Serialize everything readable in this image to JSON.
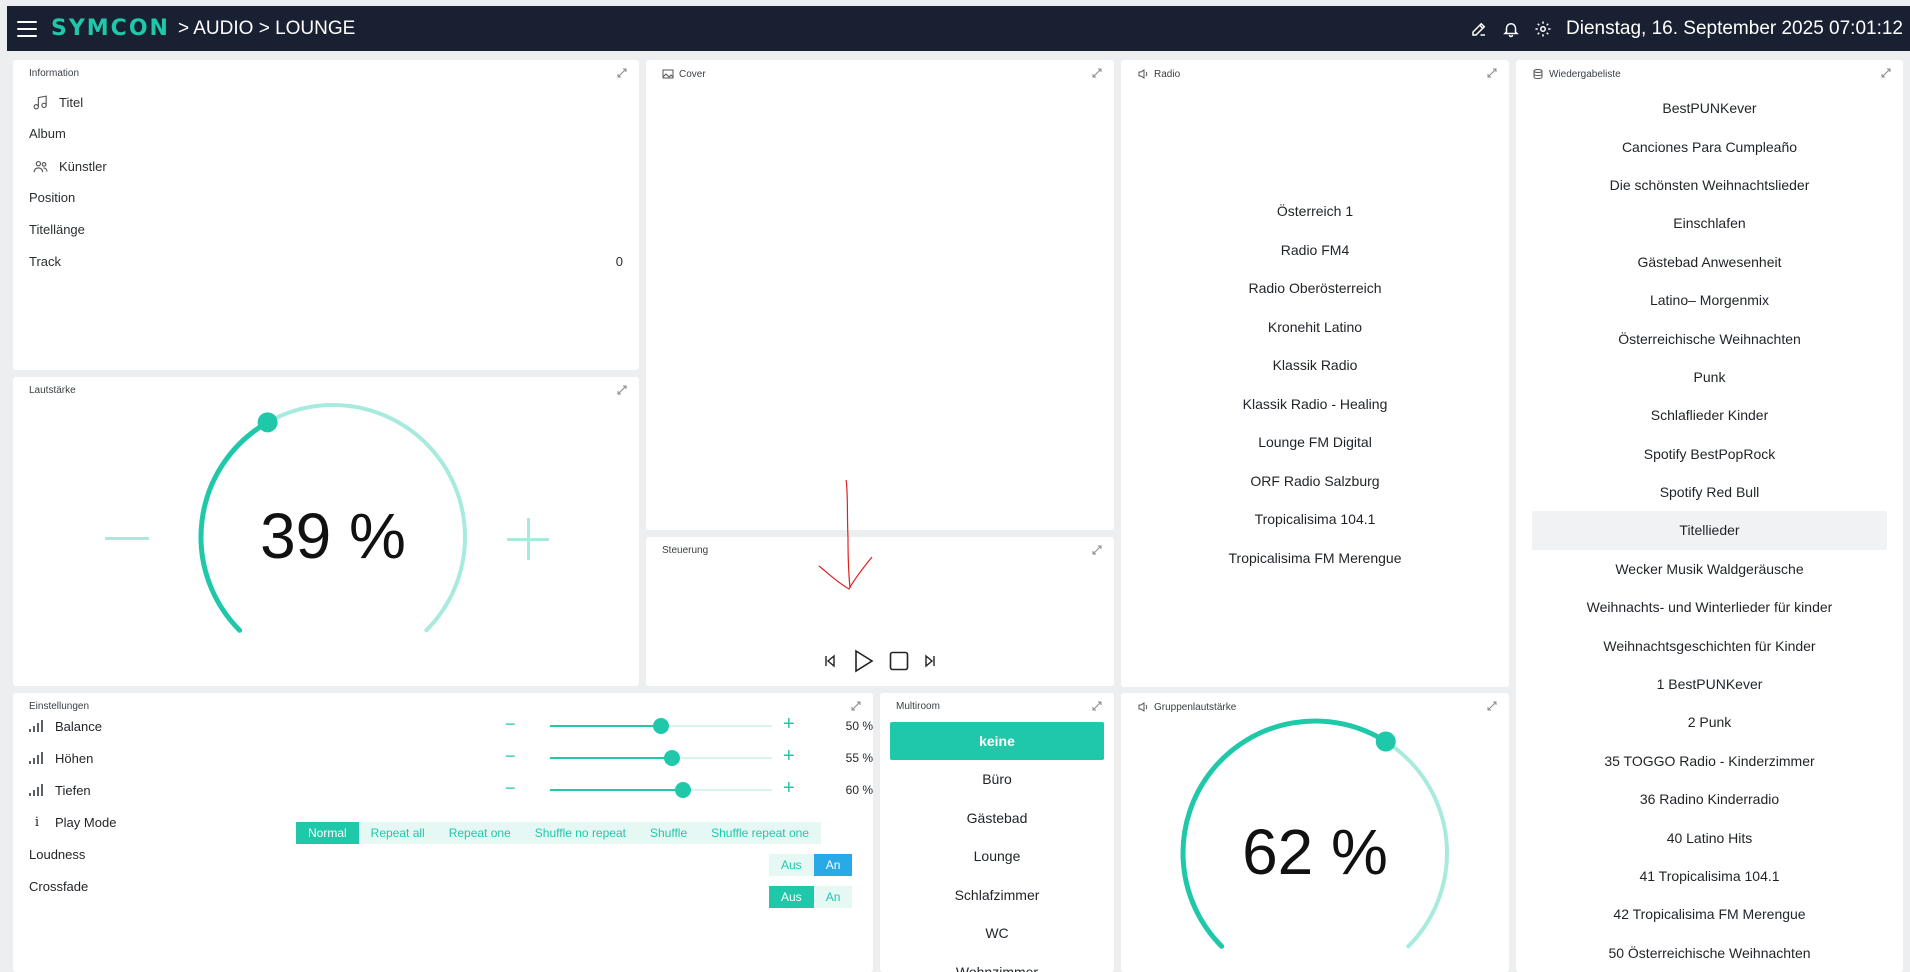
{
  "header": {
    "logo": "SYMCON",
    "breadcrumb": "> AUDIO > LOUNGE",
    "datetime": "Dienstag, 16. September 2025 07:01:12"
  },
  "information": {
    "title": "Information",
    "rows": [
      {
        "label": "Titel",
        "value": "",
        "icon": "music-note-icon"
      },
      {
        "label": "Album",
        "value": ""
      },
      {
        "label": "Künstler",
        "value": "",
        "icon": "users-icon"
      },
      {
        "label": "Position",
        "value": ""
      },
      {
        "label": "Titellänge",
        "value": ""
      },
      {
        "label": "Track",
        "value": "0"
      }
    ]
  },
  "cover": {
    "title": "Cover"
  },
  "radio": {
    "title": "Radio",
    "stations": [
      "Österreich 1",
      "Radio FM4",
      "Radio Oberösterreich",
      "Kronehit Latino",
      "Klassik Radio",
      "Klassik Radio - Healing",
      "Lounge FM Digital",
      "ORF Radio Salzburg",
      "Tropicalisima 104.1",
      "Tropicalisima FM Merengue"
    ]
  },
  "playlist": {
    "title": "Wiedergabeliste",
    "selected": "Titellieder",
    "items": [
      "BestPUNKever",
      "Canciones Para Cumpleaño",
      "Die schönsten Weihnachtslieder",
      "Einschlafen",
      "Gästebad Anwesenheit",
      "Latino– Morgenmix",
      "Österreichische Weihnachten",
      "Punk",
      "Schlaflieder Kinder",
      "Spotify BestPopRock",
      "Spotify Red Bull",
      "Titellieder",
      "Wecker Musik Waldgeräusche",
      "Weihnachts- und Winterlieder für kinder",
      "Weihnachtsgeschichten für Kinder",
      "1 BestPUNKever",
      "2 Punk",
      "35 TOGGO Radio - Kinderzimmer",
      "36 Radino Kinderradio",
      "40 Latino Hits",
      "41 Tropicalisima 104.1",
      "42 Tropicalisima FM Merengue",
      "50 Österreichische Weihnachten"
    ]
  },
  "volume": {
    "title": "Lautstärke",
    "value_text": "39 %",
    "value": 39,
    "minus": "−",
    "plus": "+"
  },
  "control": {
    "title": "Steuerung"
  },
  "settings": {
    "title": "Einstellungen",
    "sliders": [
      {
        "label": "Balance",
        "value": 50,
        "text": "50 %"
      },
      {
        "label": "Höhen",
        "value": 55,
        "text": "55 %"
      },
      {
        "label": "Tiefen",
        "value": 60,
        "text": "60 %"
      }
    ],
    "minus": "−",
    "plus": "+",
    "play_mode": {
      "label": "Play Mode",
      "options": [
        "Normal",
        "Repeat all",
        "Repeat one",
        "Shuffle no repeat",
        "Shuffle",
        "Shuffle repeat one"
      ],
      "selected": "Normal"
    },
    "loudness": {
      "label": "Loudness",
      "off": "Aus",
      "on": "An",
      "state": "An"
    },
    "crossfade": {
      "label": "Crossfade",
      "off": "Aus",
      "on": "An",
      "state": "Aus"
    }
  },
  "multiroom": {
    "title": "Multiroom",
    "selected": "keine",
    "items": [
      "keine",
      "Büro",
      "Gästebad",
      "Lounge",
      "Schlafzimmer",
      "WC",
      "Wohnzimmer"
    ]
  },
  "group_volume": {
    "title": "Gruppenlautstärke",
    "value_text": "62 %",
    "value": 62
  },
  "colors": {
    "accent": "#1fc8a9",
    "accent_light": "#a8ebde",
    "header_bg": "#182032",
    "blue": "#29a9e6"
  }
}
